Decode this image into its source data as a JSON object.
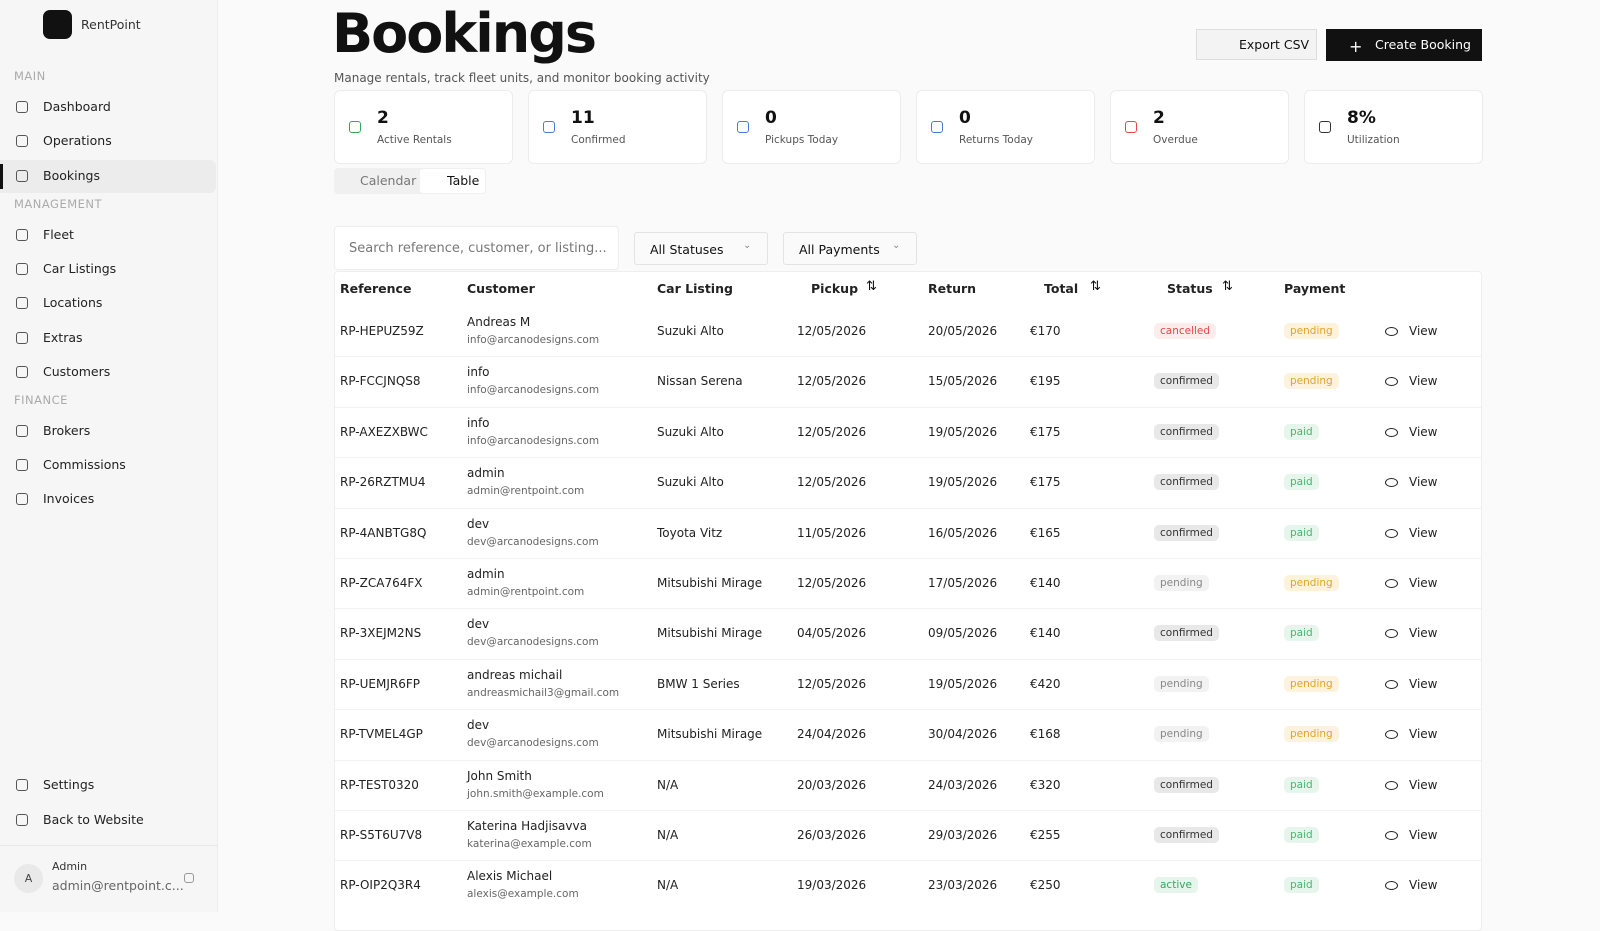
{
  "sidebar": {
    "brand": "RentPoint",
    "sections": [
      {
        "label": "MAIN",
        "items": [
          "Dashboard",
          "Operations",
          "Bookings"
        ]
      },
      {
        "label": "MANAGEMENT",
        "items": [
          "Fleet",
          "Car Listings",
          "Locations",
          "Extras",
          "Customers"
        ]
      },
      {
        "label": "FINANCE",
        "items": [
          "Brokers",
          "Commissions",
          "Invoices"
        ]
      }
    ],
    "footer_items": [
      "Settings",
      "Back to Website"
    ],
    "user": {
      "avatar": "A",
      "name": "Admin",
      "email": "admin@rentpoint.c..."
    }
  },
  "header": {
    "title": "Bookings",
    "subtitle": "Manage rentals, track fleet units, and monitor booking activity",
    "actions": [
      "Export CSV",
      "Create Booking"
    ]
  },
  "stats": [
    {
      "value": "2",
      "label": "Active Rentals"
    },
    {
      "value": "11",
      "label": "Confirmed"
    },
    {
      "value": "0",
      "label": "Pickups Today"
    },
    {
      "value": "0",
      "label": "Returns Today"
    },
    {
      "value": "2",
      "label": "Overdue"
    },
    {
      "value": "8%",
      "label": "Utilization"
    }
  ],
  "view_tabs": [
    "Calendar",
    "Table"
  ],
  "filters": {
    "search_placeholder": "Search reference, customer, or listing...",
    "status": "All Statuses",
    "payment": "All Payments"
  },
  "table": {
    "columns": [
      "Reference",
      "Customer",
      "Car Listing",
      "Pickup",
      "Return",
      "Total",
      "Status",
      "Payment"
    ],
    "action": "View",
    "rows": [
      [
        "RP-HEPUZ59Z",
        "Andreas M",
        "info@arcanodesigns.com",
        "Suzuki Alto",
        "12/05/2026",
        "20/05/2026",
        "€170",
        "cancelled",
        "pending"
      ],
      [
        "RP-FCCJNQS8",
        "info",
        "info@arcanodesigns.com",
        "Nissan Serena",
        "12/05/2026",
        "15/05/2026",
        "€195",
        "confirmed",
        "pending"
      ],
      [
        "RP-AXEZXBWC",
        "info",
        "info@arcanodesigns.com",
        "Suzuki Alto",
        "12/05/2026",
        "19/05/2026",
        "€175",
        "confirmed",
        "paid"
      ],
      [
        "RP-26RZTMU4",
        "admin",
        "admin@rentpoint.com",
        "Suzuki Alto",
        "12/05/2026",
        "19/05/2026",
        "€175",
        "confirmed",
        "paid"
      ],
      [
        "RP-4ANBTG8Q",
        "dev",
        "dev@arcanodesigns.com",
        "Toyota Vitz",
        "11/05/2026",
        "16/05/2026",
        "€165",
        "confirmed",
        "paid"
      ],
      [
        "RP-ZCA764FX",
        "admin",
        "admin@rentpoint.com",
        "Mitsubishi Mirage",
        "12/05/2026",
        "17/05/2026",
        "€140",
        "pending",
        "pending"
      ],
      [
        "RP-3XEJM2NS",
        "dev",
        "dev@arcanodesigns.com",
        "Mitsubishi Mirage",
        "04/05/2026",
        "09/05/2026",
        "€140",
        "confirmed",
        "paid"
      ],
      [
        "RP-UEMJR6FP",
        "andreas michail",
        "andreasmichail3@gmail.com",
        "BMW 1 Series",
        "12/05/2026",
        "19/05/2026",
        "€420",
        "pending",
        "pending"
      ],
      [
        "RP-TVMEL4GP",
        "dev",
        "dev@arcanodesigns.com",
        "Mitsubishi Mirage",
        "24/04/2026",
        "30/04/2026",
        "€168",
        "pending",
        "pending"
      ],
      [
        "RP-TEST0320",
        "John Smith",
        "john.smith@example.com",
        "N/A",
        "20/03/2026",
        "24/03/2026",
        "€320",
        "confirmed",
        "paid"
      ],
      [
        "RP-S5T6U7V8",
        "Katerina Hadjisavva",
        "katerina@example.com",
        "N/A",
        "26/03/2026",
        "29/03/2026",
        "€255",
        "confirmed",
        "paid"
      ],
      [
        "RP-OIP2Q3R4",
        "Alexis Michael",
        "alexis@example.com",
        "N/A",
        "19/03/2026",
        "23/03/2026",
        "€250",
        "active",
        "paid"
      ]
    ]
  }
}
